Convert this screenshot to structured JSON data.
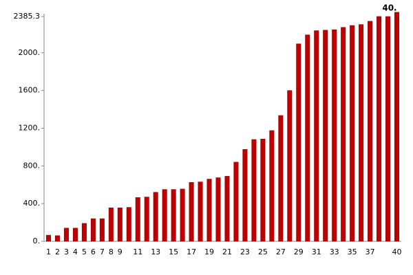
{
  "chart_data": {
    "type": "bar",
    "annotation": "40.",
    "categories": [
      "1",
      "2",
      "3",
      "4",
      "5",
      "6",
      "7",
      "8",
      "9",
      null,
      "11",
      null,
      "13",
      null,
      "15",
      null,
      "17",
      null,
      "19",
      null,
      "21",
      null,
      "23",
      null,
      "25",
      null,
      "27",
      null,
      "29",
      null,
      "31",
      null,
      "33",
      null,
      "35",
      null,
      "37",
      null,
      null,
      "40"
    ],
    "values": [
      65,
      60,
      140,
      140,
      190,
      240,
      240,
      355,
      355,
      360,
      465,
      470,
      520,
      550,
      550,
      555,
      625,
      630,
      660,
      675,
      690,
      840,
      975,
      1080,
      1085,
      1175,
      1335,
      1600,
      2095,
      2190,
      2235,
      2240,
      2245,
      2270,
      2290,
      2300,
      2335,
      2385.3,
      2385,
      2430
    ],
    "color": "#c00000",
    "ylim": [
      0,
      2385.3
    ],
    "yticks": [
      {
        "value": 0,
        "label": "0."
      },
      {
        "value": 400,
        "label": "400."
      },
      {
        "value": 800,
        "label": "800."
      },
      {
        "value": 1200,
        "label": "1200."
      },
      {
        "value": 1600,
        "label": "1600."
      },
      {
        "value": 2000,
        "label": "2000."
      },
      2385.3
    ],
    "grid": false
  }
}
